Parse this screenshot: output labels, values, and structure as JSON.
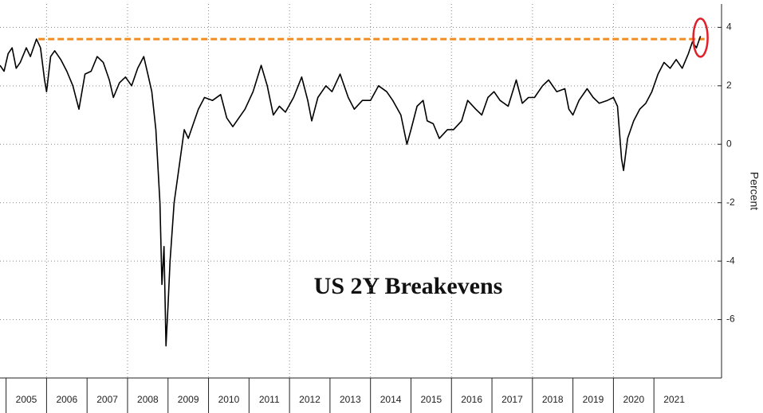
{
  "chart_data": {
    "type": "line",
    "annotation": "US 2Y Breakevens",
    "ylabel": "Percent",
    "x": [
      2004.85,
      2004.95,
      2005.05,
      2005.15,
      2005.25,
      2005.35,
      2005.5,
      2005.6,
      2005.75,
      2005.85,
      2005.95,
      2006.0,
      2006.1,
      2006.2,
      2006.35,
      2006.5,
      2006.65,
      2006.8,
      2006.95,
      2007.1,
      2007.25,
      2007.4,
      2007.55,
      2007.65,
      2007.8,
      2007.95,
      2008.1,
      2008.25,
      2008.4,
      2008.5,
      2008.6,
      2008.7,
      2008.8,
      2008.85,
      2008.9,
      2008.95,
      2009.0,
      2009.05,
      2009.15,
      2009.25,
      2009.4,
      2009.5,
      2009.6,
      2009.75,
      2009.9,
      2010.1,
      2010.3,
      2010.45,
      2010.6,
      2010.75,
      2010.9,
      2011.1,
      2011.3,
      2011.45,
      2011.6,
      2011.75,
      2011.9,
      2012.1,
      2012.3,
      2012.45,
      2012.55,
      2012.7,
      2012.9,
      2013.05,
      2013.25,
      2013.45,
      2013.6,
      2013.8,
      2014.0,
      2014.2,
      2014.4,
      2014.55,
      2014.75,
      2014.9,
      2015.0,
      2015.15,
      2015.3,
      2015.4,
      2015.55,
      2015.7,
      2015.9,
      2016.05,
      2016.25,
      2016.4,
      2016.6,
      2016.75,
      2016.9,
      2017.05,
      2017.2,
      2017.4,
      2017.6,
      2017.75,
      2017.9,
      2018.05,
      2018.25,
      2018.4,
      2018.6,
      2018.8,
      2018.9,
      2019.0,
      2019.15,
      2019.35,
      2019.5,
      2019.65,
      2019.85,
      2020.0,
      2020.1,
      2020.2,
      2020.25,
      2020.35,
      2020.5,
      2020.65,
      2020.8,
      2020.95,
      2021.1,
      2021.25,
      2021.4,
      2021.55,
      2021.7,
      2021.85,
      2021.95,
      2022.05,
      2022.15
    ],
    "values": [
      2.7,
      2.5,
      3.1,
      3.3,
      2.6,
      2.8,
      3.3,
      3.0,
      3.6,
      3.3,
      2.2,
      1.8,
      3.0,
      3.2,
      2.9,
      2.5,
      2.0,
      1.2,
      2.4,
      2.5,
      3.0,
      2.8,
      2.2,
      1.6,
      2.1,
      2.3,
      2.0,
      2.6,
      3.0,
      2.4,
      1.8,
      0.5,
      -2.0,
      -4.8,
      -3.5,
      -6.9,
      -5.5,
      -4.0,
      -2.0,
      -1.0,
      0.5,
      0.2,
      0.6,
      1.2,
      1.6,
      1.5,
      1.7,
      0.9,
      0.6,
      0.9,
      1.2,
      1.8,
      2.7,
      2.0,
      1.0,
      1.3,
      1.1,
      1.6,
      2.3,
      1.5,
      0.8,
      1.6,
      2.0,
      1.8,
      2.4,
      1.6,
      1.2,
      1.5,
      1.5,
      2.0,
      1.8,
      1.5,
      1.0,
      0.0,
      0.5,
      1.3,
      1.5,
      0.8,
      0.7,
      0.2,
      0.5,
      0.5,
      0.8,
      1.5,
      1.2,
      1.0,
      1.6,
      1.8,
      1.5,
      1.3,
      2.2,
      1.4,
      1.6,
      1.6,
      2.0,
      2.2,
      1.8,
      1.9,
      1.2,
      1.0,
      1.5,
      1.9,
      1.6,
      1.4,
      1.5,
      1.6,
      1.3,
      -0.5,
      -0.9,
      0.2,
      0.8,
      1.2,
      1.4,
      1.8,
      2.4,
      2.8,
      2.6,
      2.9,
      2.6,
      3.1,
      3.5,
      3.3,
      3.7
    ],
    "color": "#000000",
    "reference_line": {
      "value": 3.6,
      "from": 2005.8,
      "to": 2022.25,
      "color": "#f28c1e"
    },
    "xlim": [
      2004.85,
      2022.67
    ],
    "xticks": [
      {
        "value": 2005,
        "label": "2005"
      },
      {
        "value": 2006,
        "label": "2006"
      },
      {
        "value": 2007,
        "label": "2007"
      },
      {
        "value": 2008,
        "label": "2008"
      },
      {
        "value": 2009,
        "label": "2009"
      },
      {
        "value": 2010,
        "label": "2010"
      },
      {
        "value": 2011,
        "label": "2011"
      },
      {
        "value": 2012,
        "label": "2012"
      },
      {
        "value": 2013,
        "label": "2013"
      },
      {
        "value": 2014,
        "label": "2014"
      },
      {
        "value": 2015,
        "label": "2015"
      },
      {
        "value": 2016,
        "label": "2016"
      },
      {
        "value": 2017,
        "label": "2017"
      },
      {
        "value": 2018,
        "label": "2018"
      },
      {
        "value": 2019,
        "label": "2019"
      },
      {
        "value": 2020,
        "label": "2020"
      },
      {
        "value": 2021,
        "label": "2021"
      }
    ],
    "ylim": [
      -8,
      4.8
    ],
    "yticks": [
      4,
      2,
      0,
      -2,
      -4,
      -6
    ],
    "grid": true
  }
}
